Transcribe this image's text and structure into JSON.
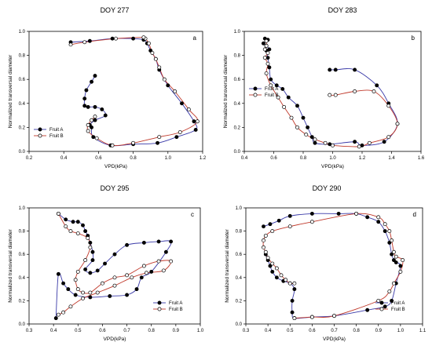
{
  "chart_data": [
    {
      "type": "scatter",
      "title": "DOY 277",
      "panel_letter": "a",
      "xlabel": "VPD(kPa)",
      "ylabel": "Normalized transversal diameter",
      "xlim": [
        0.2,
        1.2
      ],
      "ylim": [
        0.0,
        1.0
      ],
      "xticks": [
        "0.2",
        "0.4",
        "0.6",
        "0.8",
        "1.0",
        "1.2"
      ],
      "yticks": [
        "0.0",
        "0.2",
        "0.4",
        "0.6",
        "0.8",
        "1.0"
      ],
      "legend_position": "bottom-left",
      "series": [
        {
          "name": "Fruit A",
          "marker": "filled",
          "color": "#3a3aa8",
          "x": [
            0.58,
            0.56,
            0.53,
            0.52,
            0.52,
            0.54,
            0.58,
            0.62,
            0.64,
            0.58,
            0.55,
            0.56,
            0.57,
            0.67,
            0.8,
            0.94,
            1.05,
            1.16,
            1.15,
            1.08,
            1.0,
            0.95,
            0.93,
            0.9,
            0.88,
            0.86,
            0.8,
            0.68,
            0.55,
            0.44
          ],
          "y": [
            0.63,
            0.58,
            0.51,
            0.44,
            0.38,
            0.37,
            0.37,
            0.35,
            0.3,
            0.26,
            0.22,
            0.2,
            0.12,
            0.05,
            0.06,
            0.07,
            0.12,
            0.18,
            0.25,
            0.4,
            0.55,
            0.68,
            0.77,
            0.84,
            0.9,
            0.93,
            0.94,
            0.94,
            0.92,
            0.91
          ]
        },
        {
          "name": "Fruit B",
          "marker": "open",
          "color": "#c0392b",
          "x": [
            0.58,
            0.56,
            0.54,
            0.54,
            0.59,
            0.68,
            0.8,
            0.95,
            1.07,
            1.17,
            1.12,
            1.04,
            0.98,
            0.95,
            0.93,
            0.91,
            0.89,
            0.87,
            0.86,
            0.7,
            0.52,
            0.44
          ],
          "y": [
            0.29,
            0.26,
            0.22,
            0.17,
            0.11,
            0.05,
            0.07,
            0.12,
            0.16,
            0.25,
            0.35,
            0.5,
            0.6,
            0.7,
            0.77,
            0.82,
            0.9,
            0.94,
            0.95,
            0.94,
            0.91,
            0.89
          ]
        }
      ]
    },
    {
      "type": "scatter",
      "title": "DOY 283",
      "panel_letter": "b",
      "xlabel": "VPD(kPa)",
      "ylabel": "Normalized transversal diameter",
      "xlim": [
        0.4,
        1.6
      ],
      "ylim": [
        0.0,
        1.0
      ],
      "xticks": [
        "0.4",
        "0.6",
        "0.8",
        "1.0",
        "1.2",
        "1.4",
        "1.6"
      ],
      "yticks": [
        "0.0",
        "0.2",
        "0.4",
        "0.6",
        "0.8",
        "1.0"
      ],
      "legend_position": "left",
      "series": [
        {
          "name": "Fruit A",
          "marker": "filled",
          "color": "#3a3aa8",
          "x": [
            0.98,
            1.02,
            1.15,
            1.3,
            1.38,
            1.44,
            1.35,
            1.2,
            1.15,
            0.98,
            0.88,
            0.86,
            0.83,
            0.8,
            0.76,
            0.7,
            0.66,
            0.62,
            0.58,
            0.57,
            0.56,
            0.55,
            0.57,
            0.55,
            0.53,
            0.56,
            0.54
          ],
          "y": [
            0.68,
            0.68,
            0.68,
            0.55,
            0.4,
            0.23,
            0.08,
            0.05,
            0.08,
            0.06,
            0.07,
            0.12,
            0.2,
            0.28,
            0.38,
            0.45,
            0.52,
            0.55,
            0.6,
            0.7,
            0.78,
            0.84,
            0.85,
            0.88,
            0.9,
            0.93,
            0.94
          ]
        },
        {
          "name": "Fruit B",
          "marker": "open",
          "color": "#c0392b",
          "x": [
            0.98,
            1.02,
            1.15,
            1.28,
            1.38,
            1.44,
            1.38,
            1.25,
            1.18,
            1.0,
            0.95,
            0.88,
            0.82,
            0.76,
            0.72,
            0.67,
            0.63,
            0.58,
            0.55,
            0.56,
            0.54,
            0.56,
            0.54,
            0.55,
            0.55
          ],
          "y": [
            0.47,
            0.47,
            0.5,
            0.5,
            0.38,
            0.23,
            0.12,
            0.07,
            0.04,
            0.05,
            0.07,
            0.1,
            0.14,
            0.2,
            0.28,
            0.37,
            0.45,
            0.55,
            0.65,
            0.73,
            0.78,
            0.82,
            0.85,
            0.88,
            0.92
          ]
        }
      ]
    },
    {
      "type": "scatter",
      "title": "DOY 295",
      "panel_letter": "c",
      "xlabel": "VPD(kPa)",
      "ylabel": "Normalized transversal diameter",
      "xlim": [
        0.3,
        1.0
      ],
      "ylim": [
        0.0,
        1.0
      ],
      "xticks": [
        "0.3",
        "0.4",
        "0.5",
        "0.6",
        "0.7",
        "0.8",
        "0.9",
        "1.0"
      ],
      "yticks": [
        "0.0",
        "0.2",
        "0.4",
        "0.6",
        "0.8",
        "1.0"
      ],
      "legend_position": "bottom-right",
      "series": [
        {
          "name": "Fruit A",
          "marker": "filled",
          "color": "#3a3aa8",
          "x": [
            0.42,
            0.45,
            0.48,
            0.5,
            0.52,
            0.53,
            0.54,
            0.55,
            0.56,
            0.56,
            0.53,
            0.55,
            0.58,
            0.61,
            0.65,
            0.7,
            0.77,
            0.83,
            0.88,
            0.86,
            0.8,
            0.76,
            0.74,
            0.7,
            0.63,
            0.55,
            0.49,
            0.46,
            0.44,
            0.42,
            0.41
          ],
          "y": [
            0.95,
            0.9,
            0.88,
            0.88,
            0.85,
            0.8,
            0.76,
            0.7,
            0.62,
            0.55,
            0.47,
            0.44,
            0.46,
            0.52,
            0.6,
            0.68,
            0.7,
            0.71,
            0.71,
            0.62,
            0.45,
            0.4,
            0.3,
            0.25,
            0.24,
            0.23,
            0.25,
            0.3,
            0.35,
            0.43,
            0.05
          ]
        },
        {
          "name": "Fruit B",
          "marker": "open",
          "color": "#c0392b",
          "x": [
            0.42,
            0.45,
            0.47,
            0.5,
            0.54,
            0.55,
            0.53,
            0.5,
            0.49,
            0.5,
            0.52,
            0.55,
            0.6,
            0.65,
            0.7,
            0.77,
            0.83,
            0.88,
            0.85,
            0.78,
            0.72,
            0.65,
            0.58,
            0.52,
            0.47,
            0.44,
            0.42
          ],
          "y": [
            0.95,
            0.84,
            0.8,
            0.78,
            0.74,
            0.66,
            0.55,
            0.45,
            0.38,
            0.3,
            0.27,
            0.27,
            0.35,
            0.4,
            0.42,
            0.5,
            0.54,
            0.54,
            0.46,
            0.44,
            0.4,
            0.33,
            0.27,
            0.22,
            0.15,
            0.1,
            0.08
          ]
        }
      ]
    },
    {
      "type": "scatter",
      "title": "DOY 290",
      "panel_letter": "d",
      "xlabel": "VPD(kPa)",
      "ylabel": "Normalized transversal diameter",
      "xlim": [
        0.3,
        1.1
      ],
      "ylim": [
        0.0,
        1.0
      ],
      "xticks": [
        "0.3",
        "0.4",
        "0.5",
        "0.6",
        "0.7",
        "0.8",
        "0.9",
        "1.0",
        "1.1"
      ],
      "yticks": [
        "0.0",
        "0.2",
        "0.4",
        "0.6",
        "0.8",
        "1.0"
      ],
      "legend_position": "bottom-right",
      "series": [
        {
          "name": "Fruit A",
          "marker": "filled",
          "color": "#3a3aa8",
          "x": [
            0.38,
            0.41,
            0.45,
            0.5,
            0.6,
            0.72,
            0.8,
            0.85,
            0.9,
            0.93,
            0.95,
            0.96,
            0.97,
            0.98,
            1.0,
            0.98,
            0.96,
            0.93,
            0.85,
            0.7,
            0.6,
            0.52,
            0.51,
            0.51,
            0.52,
            0.5,
            0.47,
            0.44,
            0.42,
            0.41,
            0.4,
            0.39
          ],
          "y": [
            0.84,
            0.86,
            0.89,
            0.93,
            0.95,
            0.95,
            0.95,
            0.92,
            0.88,
            0.8,
            0.7,
            0.6,
            0.55,
            0.53,
            0.5,
            0.35,
            0.2,
            0.15,
            0.12,
            0.07,
            0.06,
            0.05,
            0.1,
            0.2,
            0.3,
            0.35,
            0.37,
            0.4,
            0.45,
            0.5,
            0.55,
            0.6
          ]
        },
        {
          "name": "Fruit B",
          "marker": "open",
          "color": "#c0392b",
          "x": [
            0.52,
            0.5,
            0.48,
            0.46,
            0.44,
            0.42,
            0.4,
            0.39,
            0.38,
            0.38,
            0.39,
            0.42,
            0.5,
            0.6,
            0.8,
            0.9,
            0.93,
            0.95,
            0.96,
            0.97,
            0.98,
            1.01,
            1.0,
            0.97,
            0.95,
            0.9,
            0.7,
            0.6,
            0.52
          ],
          "y": [
            0.35,
            0.35,
            0.38,
            0.42,
            0.48,
            0.52,
            0.57,
            0.62,
            0.66,
            0.72,
            0.76,
            0.8,
            0.84,
            0.88,
            0.95,
            0.92,
            0.86,
            0.8,
            0.72,
            0.62,
            0.58,
            0.55,
            0.45,
            0.35,
            0.28,
            0.2,
            0.07,
            0.06,
            0.05
          ]
        }
      ]
    }
  ]
}
